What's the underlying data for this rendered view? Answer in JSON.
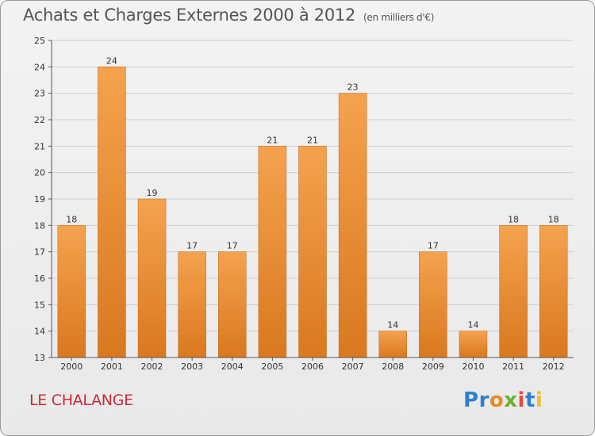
{
  "title": "Achats et Charges Externes 2000 à 2012",
  "title_unit": "(en milliers d'€)",
  "commune": "LE CHALANGE",
  "logo": {
    "letters": [
      "P",
      "r",
      "o",
      "x",
      "i",
      "t",
      "i"
    ],
    "colors": [
      "#2f7fd0",
      "#2f7fd0",
      "#e8892a",
      "#66b32e",
      "#e84a3a",
      "#2f7fd0",
      "#e8c02a"
    ]
  },
  "colors": {
    "bar_top": "#f5a24e",
    "bar_bottom": "#d9781f",
    "commune": "#cc2a3a"
  },
  "chart_data": {
    "type": "bar",
    "categories": [
      "2000",
      "2001",
      "2002",
      "2003",
      "2004",
      "2005",
      "2006",
      "2007",
      "2008",
      "2009",
      "2010",
      "2011",
      "2012"
    ],
    "values": [
      18,
      24,
      19,
      17,
      17,
      21,
      21,
      23,
      14,
      17,
      14,
      18,
      18
    ],
    "data_labels": [
      "18",
      "24",
      "19",
      "17",
      "17",
      "21",
      "21",
      "23",
      "14",
      "17",
      "14",
      "18",
      "18"
    ],
    "ylim": [
      13,
      25
    ],
    "yticks": [
      "13",
      "14",
      "15",
      "16",
      "17",
      "18",
      "19",
      "20",
      "21",
      "22",
      "23",
      "24",
      "25"
    ],
    "grid": true
  }
}
